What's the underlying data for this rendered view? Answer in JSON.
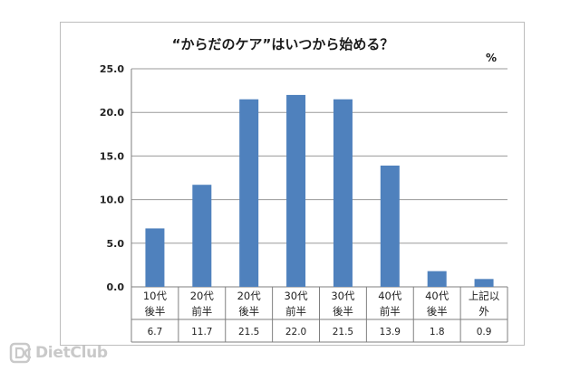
{
  "watermark": {
    "brand": "DietClub",
    "icon": "dc-logo-icon"
  },
  "chart_data": {
    "type": "bar",
    "title": "“からだのケア”はいつから始める？",
    "unit": "%",
    "categories": [
      [
        "10代",
        "後半"
      ],
      [
        "20代",
        "前半"
      ],
      [
        "20代",
        "後半"
      ],
      [
        "30代",
        "前半"
      ],
      [
        "30代",
        "後半"
      ],
      [
        "40代",
        "前半"
      ],
      [
        "40代",
        "後半"
      ],
      [
        "上記以",
        "外"
      ]
    ],
    "values": [
      6.7,
      11.7,
      21.5,
      22.0,
      21.5,
      13.9,
      1.8,
      0.9
    ],
    "value_labels": [
      "6.7",
      "11.7",
      "21.5",
      "22.0",
      "21.5",
      "13.9",
      "1.8",
      "0.9"
    ],
    "ylim": [
      0,
      25
    ],
    "yticks": [
      "0.0",
      "5.0",
      "10.0",
      "15.0",
      "20.0",
      "25.0"
    ],
    "grid": true,
    "legend": "none",
    "colors": {
      "bar": "#4f81bd",
      "grid": "#9a9a9a"
    }
  }
}
